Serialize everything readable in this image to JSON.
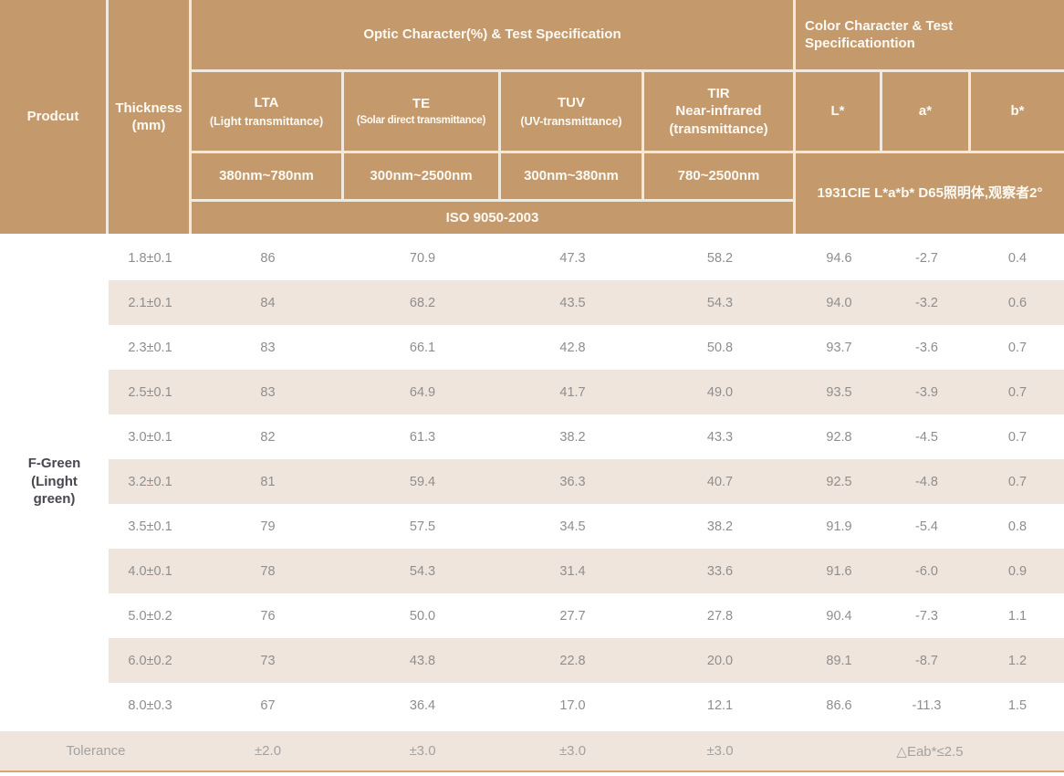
{
  "colors": {
    "header-bg": "#c49a6c",
    "header-text": "#fdfaf4",
    "line": "#f0e9dc",
    "stripe": "#f0e5dd",
    "body-text": "#8e8e8e",
    "product-text": "#474750",
    "tolerance-text": "#a2a2a2",
    "bottom-line": "#d8a76e"
  },
  "table": {
    "header": {
      "product_label": "Prodcut",
      "thickness_label": "Thickness\n(mm)",
      "optic_group_title": "Optic Character(%) & Test Specification",
      "color_group_title": "Color Character & Test\nSpecificationtion",
      "optic_columns": [
        {
          "name": "LTA",
          "desc": "(Light transmittance)",
          "range": "380nm~780nm"
        },
        {
          "name": "TE",
          "desc": "(Solar direct transmittance)",
          "range": "300nm~2500nm"
        },
        {
          "name": "TUV",
          "desc": "(UV-transmittance)",
          "range": "300nm~380nm"
        },
        {
          "name": "TIR\nNear-infrared\n(transmittance)",
          "desc": "",
          "range": "780~2500nm"
        }
      ],
      "iso_standard": "ISO 9050-2003",
      "color_columns": [
        "L*",
        "a*",
        "b*"
      ],
      "cie_note": "1931CIE L*a*b* D65照明体,观察者2°"
    },
    "product_name": "F-Green\n(Linght\ngreen)",
    "rows": [
      {
        "thickness": "1.8±0.1",
        "lta": "86",
        "te": "70.9",
        "tuv": "47.3",
        "tir": "58.2",
        "l": "94.6",
        "a": "-2.7",
        "b": "0.4"
      },
      {
        "thickness": "2.1±0.1",
        "lta": "84",
        "te": "68.2",
        "tuv": "43.5",
        "tir": "54.3",
        "l": "94.0",
        "a": "-3.2",
        "b": "0.6"
      },
      {
        "thickness": "2.3±0.1",
        "lta": "83",
        "te": "66.1",
        "tuv": "42.8",
        "tir": "50.8",
        "l": "93.7",
        "a": "-3.6",
        "b": "0.7"
      },
      {
        "thickness": "2.5±0.1",
        "lta": "83",
        "te": "64.9",
        "tuv": "41.7",
        "tir": "49.0",
        "l": "93.5",
        "a": "-3.9",
        "b": "0.7"
      },
      {
        "thickness": "3.0±0.1",
        "lta": "82",
        "te": "61.3",
        "tuv": "38.2",
        "tir": "43.3",
        "l": "92.8",
        "a": "-4.5",
        "b": "0.7"
      },
      {
        "thickness": "3.2±0.1",
        "lta": "81",
        "te": "59.4",
        "tuv": "36.3",
        "tir": "40.7",
        "l": "92.5",
        "a": "-4.8",
        "b": "0.7"
      },
      {
        "thickness": "3.5±0.1",
        "lta": "79",
        "te": "57.5",
        "tuv": "34.5",
        "tir": "38.2",
        "l": "91.9",
        "a": "-5.4",
        "b": "0.8"
      },
      {
        "thickness": "4.0±0.1",
        "lta": "78",
        "te": "54.3",
        "tuv": "31.4",
        "tir": "33.6",
        "l": "91.6",
        "a": "-6.0",
        "b": "0.9"
      },
      {
        "thickness": "5.0±0.2",
        "lta": "76",
        "te": "50.0",
        "tuv": "27.7",
        "tir": "27.8",
        "l": "90.4",
        "a": "-7.3",
        "b": "1.1"
      },
      {
        "thickness": "6.0±0.2",
        "lta": "73",
        "te": "43.8",
        "tuv": "22.8",
        "tir": "20.0",
        "l": "89.1",
        "a": "-8.7",
        "b": "1.2"
      },
      {
        "thickness": "8.0±0.3",
        "lta": "67",
        "te": "36.4",
        "tuv": "17.0",
        "tir": "12.1",
        "l": "86.6",
        "a": "-11.3",
        "b": "1.5"
      }
    ],
    "tolerance": {
      "label": "Tolerance",
      "lta": "±2.0",
      "te": "±3.0",
      "tuv": "±3.0",
      "tir": "±3.0",
      "color": "△Eab*≤2.5"
    }
  }
}
